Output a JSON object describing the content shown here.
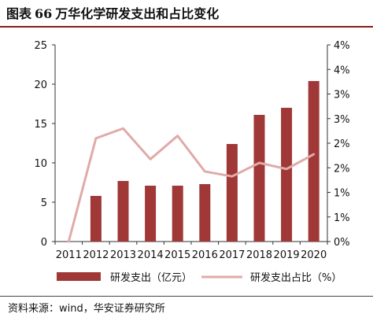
{
  "header": {
    "figure_label": "图表",
    "figure_number": "66",
    "title": "万华化学研发支出和占比变化"
  },
  "source": "资料来源：wind，华安证券研究所",
  "chart_data": {
    "type": "bar+line",
    "categories": [
      "2011",
      "2012",
      "2013",
      "2014",
      "2015",
      "2016",
      "2017",
      "2018",
      "2019",
      "2020"
    ],
    "series": [
      {
        "name": "研发支出（亿元）",
        "type": "bar",
        "axis": "left",
        "color": "#a03838",
        "values": [
          0,
          5.8,
          7.7,
          7.1,
          7.1,
          7.3,
          12.4,
          16.1,
          17.0,
          20.4
        ]
      },
      {
        "name": "研发支出占比（%）",
        "type": "line",
        "axis": "right",
        "color": "#e0aaa8",
        "values": [
          0.0,
          4.2,
          4.6,
          3.35,
          4.3,
          2.85,
          2.65,
          3.2,
          2.95,
          3.55
        ]
      }
    ],
    "y_left": {
      "min": 0,
      "max": 25,
      "ticks": [
        "0",
        "5",
        "10",
        "15",
        "20",
        "25"
      ]
    },
    "y_right": {
      "min": 0,
      "max": 8,
      "ticks": [
        "0%",
        "1%",
        "1%",
        "2%",
        "2%",
        "3%",
        "3%",
        "4%",
        "4%"
      ]
    },
    "legend_position": "bottom",
    "grid": false
  }
}
